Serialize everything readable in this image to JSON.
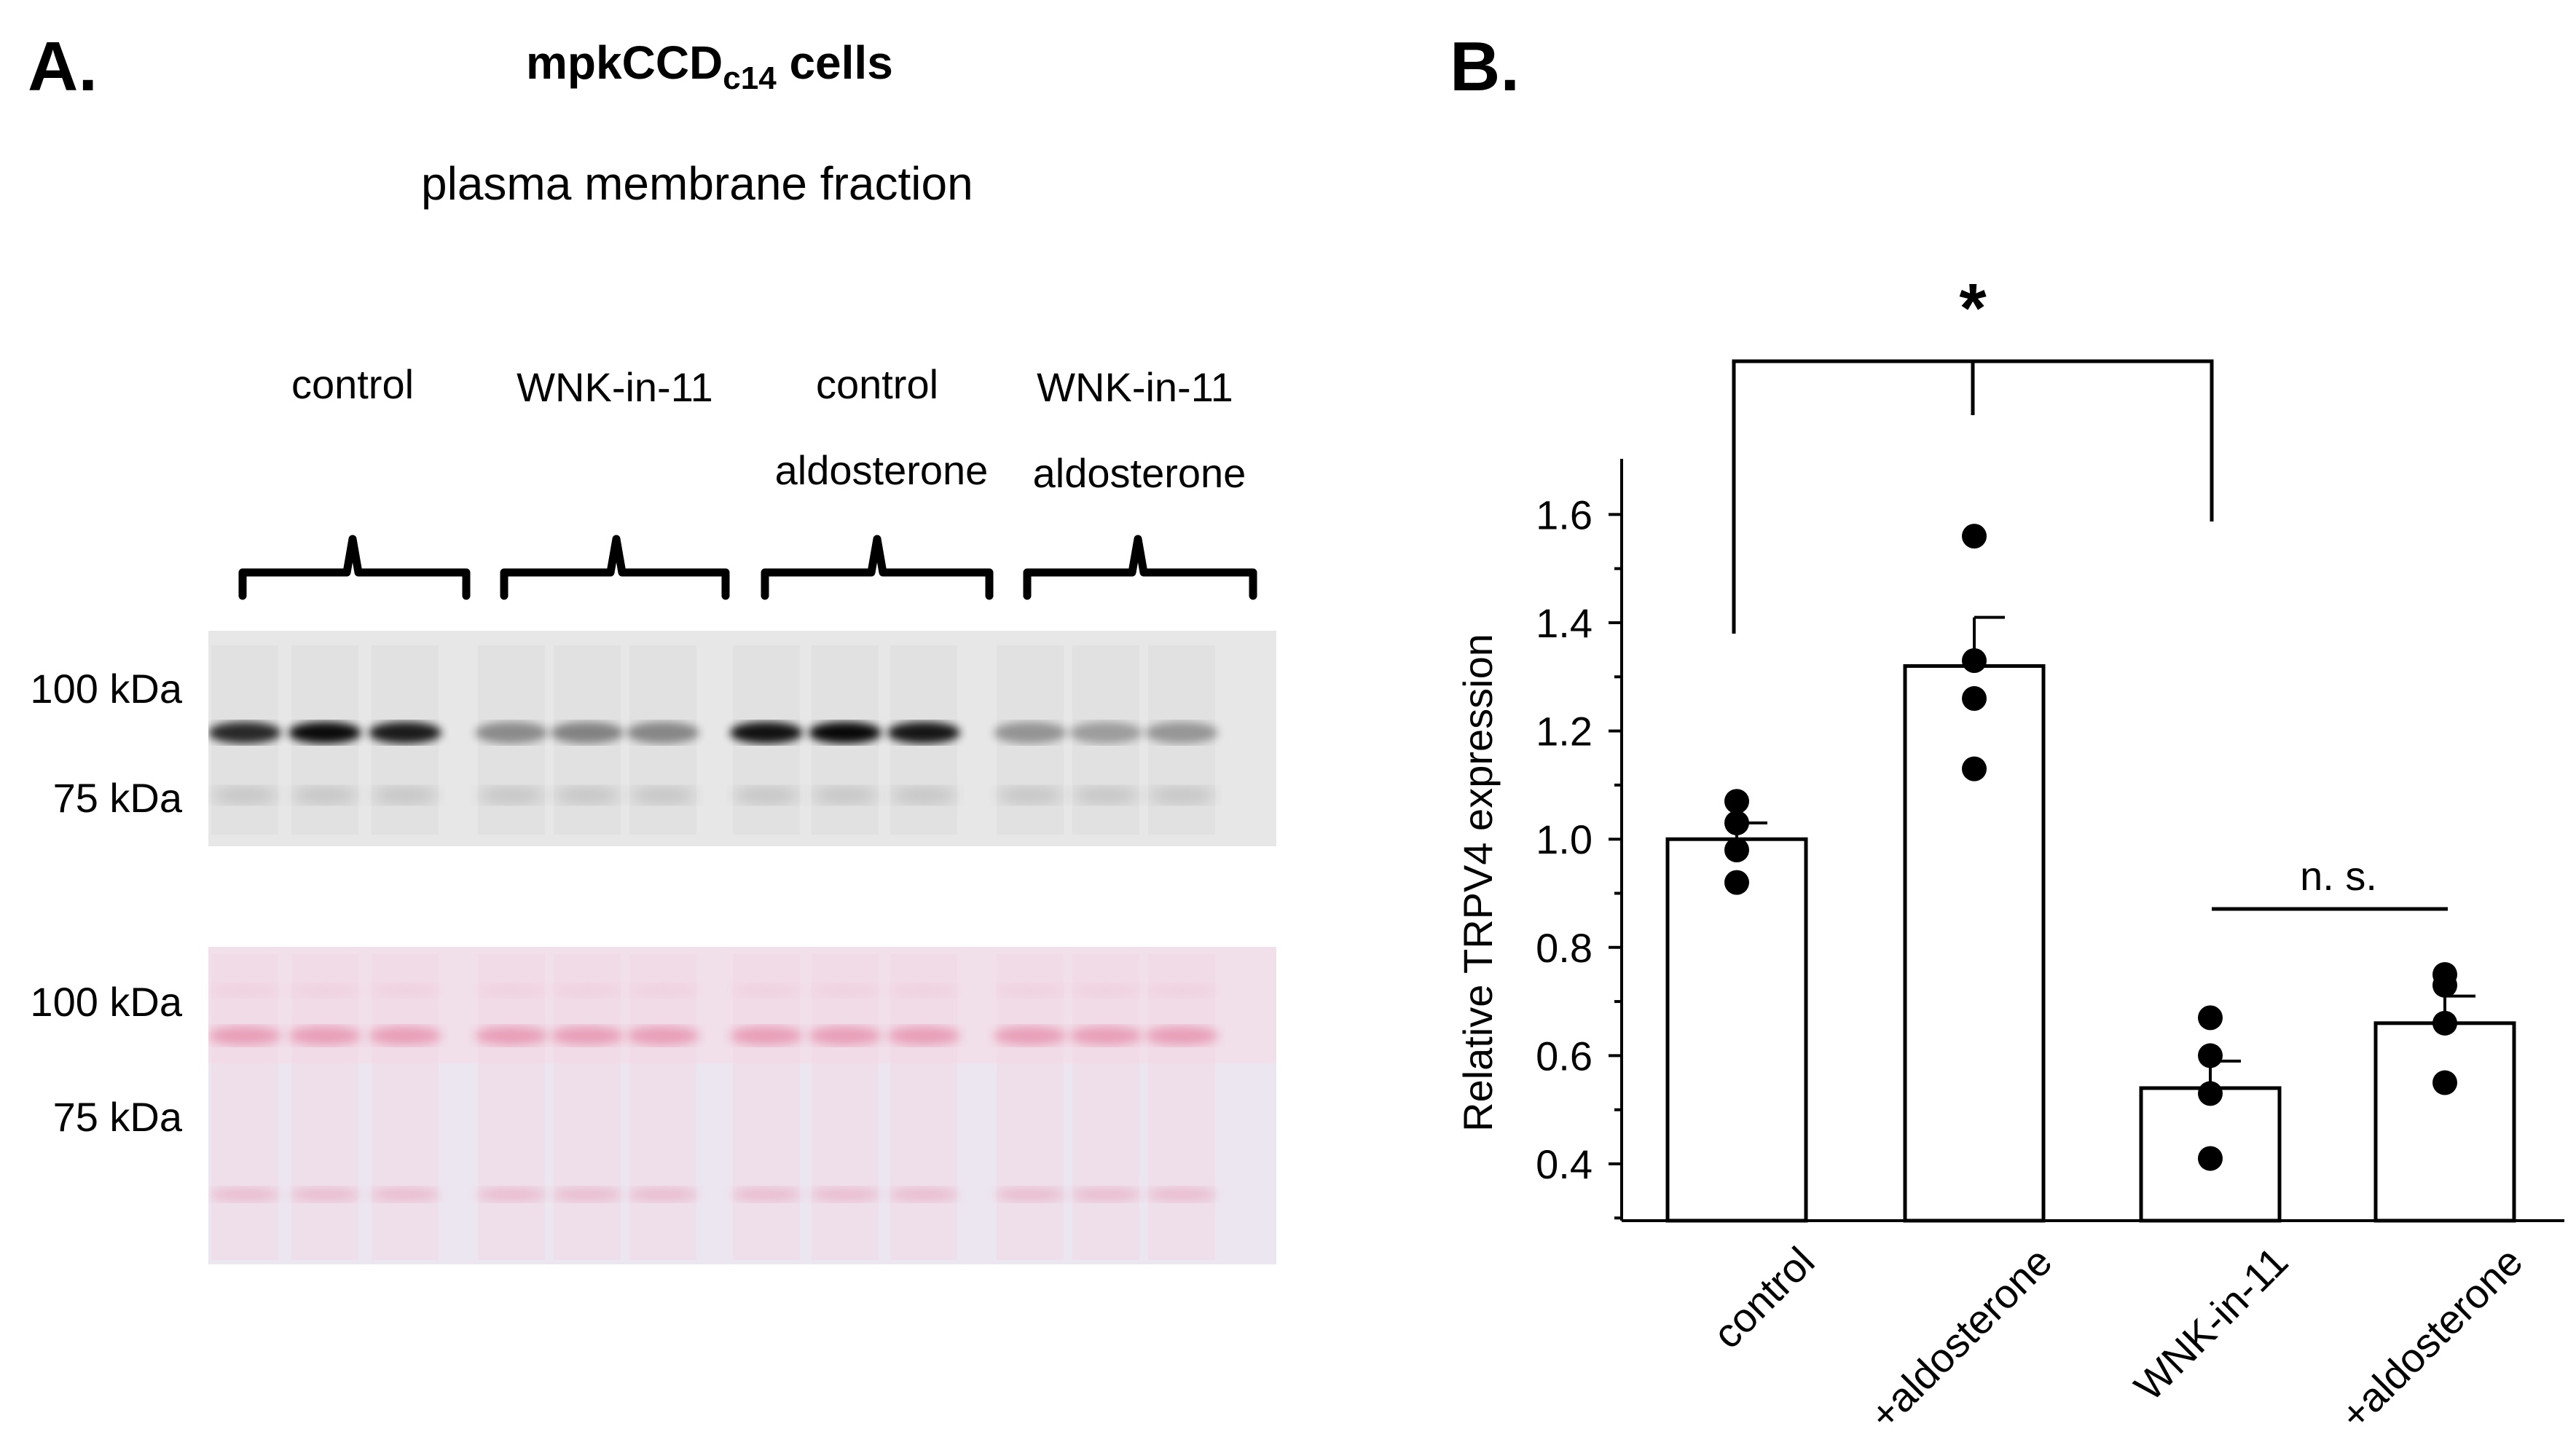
{
  "panel_a": {
    "letter": "A.",
    "title_main": "mpkCCD",
    "title_sub": "c14",
    "title_suffix": " cells",
    "subtitle": "plasma membrane fraction",
    "groups": [
      {
        "top": "control",
        "bottom": ""
      },
      {
        "top": "WNK-in-11",
        "bottom": ""
      },
      {
        "top": "control",
        "bottom": "aldosterone"
      },
      {
        "top": "WNK-in-11",
        "bottom": "aldosterone"
      }
    ],
    "blot": {
      "marker_100": "100 kDa",
      "marker_75": "75 kDa",
      "band_intensity": [
        0.82,
        0.95,
        0.88,
        0.38,
        0.42,
        0.4,
        0.92,
        0.96,
        0.9,
        0.34,
        0.3,
        0.33
      ]
    },
    "ponceau": {
      "marker_100": "100 kDa",
      "marker_75": "75 kDa"
    }
  },
  "panel_b": {
    "letter": "B.",
    "significance_star": "*",
    "ns_label": "n. s."
  },
  "chart_data": {
    "type": "bar",
    "ylabel": "Relative TRPV4 expression",
    "xlabel": "",
    "ylim": [
      0.35,
      1.7
    ],
    "yticks": [
      "0.4",
      "0.6",
      "0.8",
      "1.0",
      "1.2",
      "1.4",
      "1.6"
    ],
    "categories": [
      "control",
      "+aldosterone",
      "WNK-in-11",
      "+aldosterone"
    ],
    "values": [
      1.0,
      1.32,
      0.54,
      0.66
    ],
    "error": [
      0.03,
      0.09,
      0.05,
      0.05
    ],
    "points": [
      [
        1.07,
        1.03,
        0.98,
        0.92
      ],
      [
        1.56,
        1.33,
        1.26,
        1.13
      ],
      [
        0.67,
        0.6,
        0.53,
        0.41
      ],
      [
        0.75,
        0.73,
        0.66,
        0.55
      ]
    ],
    "colors": {
      "bar_fill": "#ffffff",
      "bar_stroke": "#000000",
      "point": "#000000"
    }
  }
}
